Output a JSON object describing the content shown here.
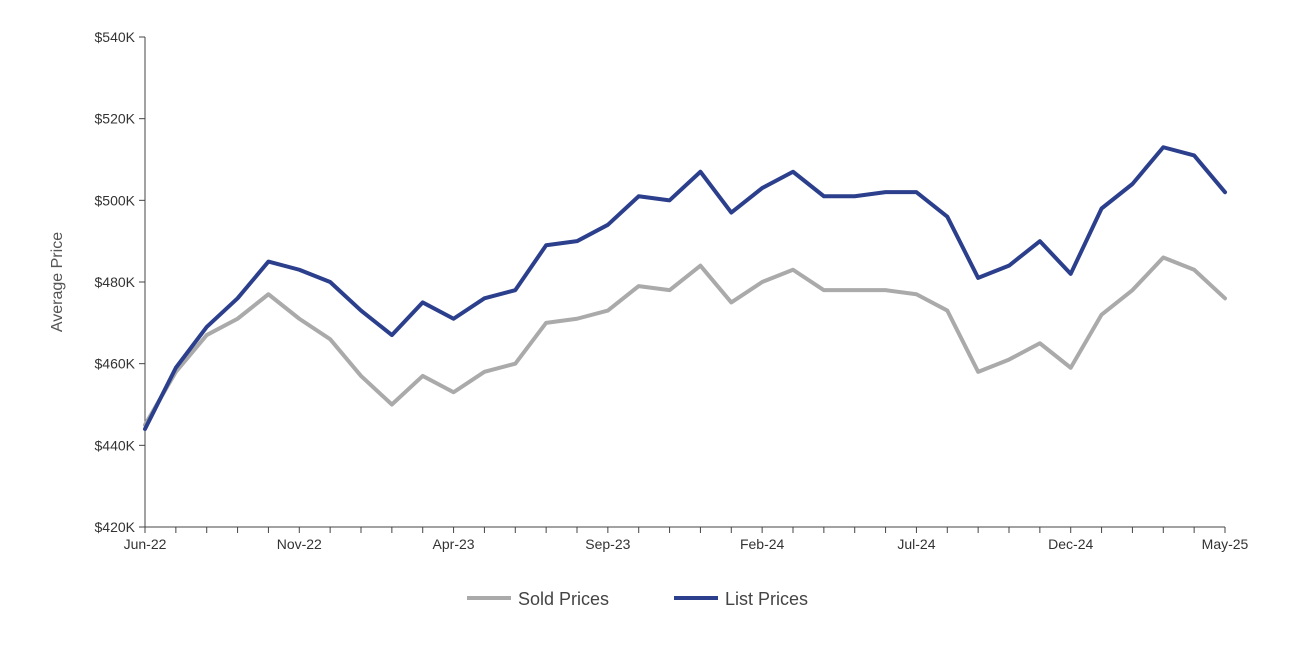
{
  "chart_data": {
    "type": "line",
    "ylabel": "Average Price",
    "xlabel": "",
    "title": "",
    "ylim": [
      420,
      540
    ],
    "yticks": [
      420,
      440,
      460,
      480,
      500,
      520,
      540
    ],
    "ytick_labels": [
      "$420K",
      "$440K",
      "$460K",
      "$480K",
      "$500K",
      "$520K",
      "$540K"
    ],
    "categories": [
      "Jun-22",
      "Jul-22",
      "Aug-22",
      "Sep-22",
      "Oct-22",
      "Nov-22",
      "Dec-22",
      "Jan-23",
      "Feb-23",
      "Mar-23",
      "Apr-23",
      "May-23",
      "Jun-23",
      "Jul-23",
      "Aug-23",
      "Sep-23",
      "Oct-23",
      "Nov-23",
      "Dec-23",
      "Jan-24",
      "Feb-24",
      "Mar-24",
      "Apr-24",
      "May-24",
      "Jun-24",
      "Jul-24",
      "Aug-24",
      "Sep-24",
      "Oct-24",
      "Nov-24",
      "Dec-24",
      "Jan-25",
      "Feb-25",
      "Mar-25",
      "Apr-25",
      "May-25"
    ],
    "xtick_labels": [
      "Jun-22",
      "Nov-22",
      "Apr-23",
      "Sep-23",
      "Feb-24",
      "Jul-24",
      "Dec-24",
      "May-25"
    ],
    "grid": false,
    "legend": "bottom",
    "series": [
      {
        "name": "Sold Prices",
        "color": "#aaaaaa",
        "values": [
          445,
          458,
          467,
          471,
          477,
          471,
          466,
          457,
          450,
          457,
          453,
          458,
          460,
          470,
          471,
          473,
          479,
          478,
          484,
          475,
          480,
          483,
          478,
          478,
          478,
          477,
          473,
          458,
          461,
          465,
          459,
          472,
          478,
          486,
          483,
          476
        ]
      },
      {
        "name": "List Prices",
        "color": "#2b3f8c",
        "values": [
          444,
          459,
          469,
          476,
          485,
          483,
          480,
          473,
          467,
          475,
          471,
          476,
          478,
          489,
          490,
          494,
          501,
          500,
          507,
          497,
          503,
          507,
          501,
          501,
          502,
          502,
          496,
          481,
          484,
          490,
          482,
          498,
          504,
          513,
          511,
          502
        ]
      }
    ]
  }
}
